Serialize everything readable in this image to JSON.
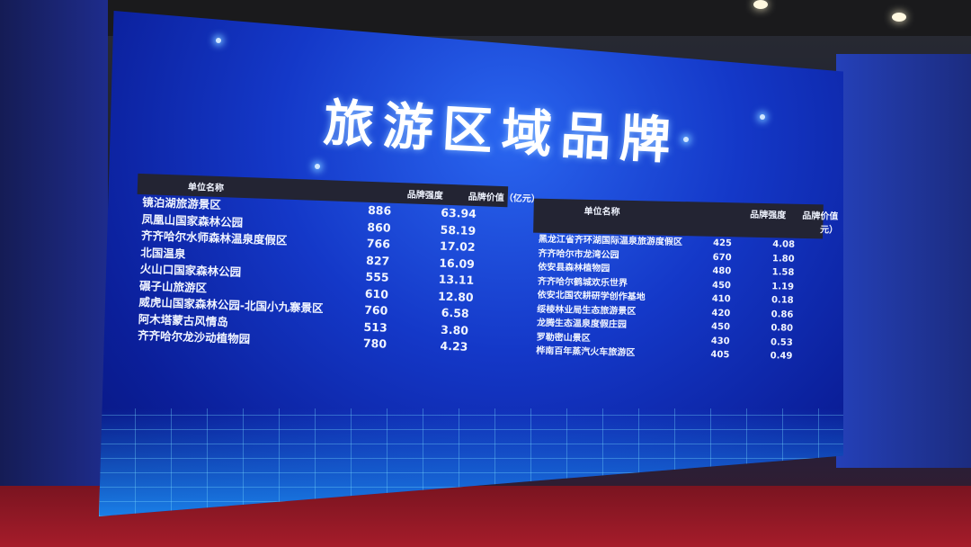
{
  "title": "旅游区域品牌",
  "tables": [
    {
      "headers": [
        "单位名称",
        "品牌强度",
        "品牌价值（亿元）"
      ],
      "rows": [
        [
          "镜泊湖旅游景区",
          "886",
          "63.94"
        ],
        [
          "凤凰山国家森林公园",
          "860",
          "58.19"
        ],
        [
          "齐齐哈尔水师森林温泉度假区",
          "766",
          "17.02"
        ],
        [
          "北国温泉",
          "827",
          "16.09"
        ],
        [
          "火山口国家森林公园",
          "555",
          "13.11"
        ],
        [
          "碾子山旅游区",
          "610",
          "12.80"
        ],
        [
          "威虎山国家森林公园-北国小九寨景区",
          "760",
          "6.58"
        ],
        [
          "阿木塔蒙古风情岛",
          "513",
          "3.80"
        ],
        [
          "齐齐哈尔龙沙动植物园",
          "780",
          "4.23"
        ]
      ]
    },
    {
      "headers": [
        "单位名称",
        "品牌强度",
        "品牌价值（亿元）"
      ],
      "rows": [
        [
          "黑龙江省齐环湖国际温泉旅游度假区",
          "425",
          "4.08"
        ],
        [
          "齐齐哈尔市龙湾公园",
          "670",
          "1.80"
        ],
        [
          "依安县森林植物园",
          "480",
          "1.58"
        ],
        [
          "齐齐哈尔鹤城欢乐世界",
          "450",
          "1.19"
        ],
        [
          "依安北国农耕研学创作基地",
          "410",
          "0.18"
        ],
        [
          "绥棱林业局生态旅游景区",
          "420",
          "0.86"
        ],
        [
          "龙腾生态温泉度假庄园",
          "450",
          "0.80"
        ],
        [
          "罗勒密山景区",
          "430",
          "0.53"
        ],
        [
          "桦南百年蒸汽火车旅游区",
          "405",
          "0.49"
        ]
      ]
    }
  ]
}
